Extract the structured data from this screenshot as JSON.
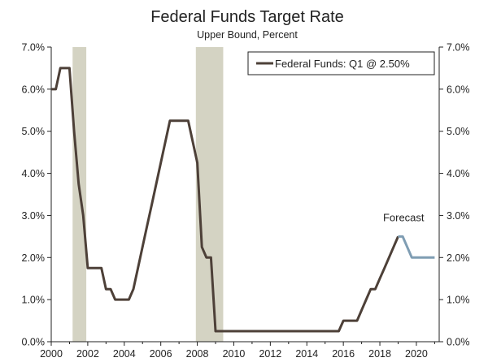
{
  "chart_data": {
    "type": "line",
    "title": "Federal Funds Target Rate",
    "subtitle": "Upper Bound, Percent",
    "xlim": [
      2000,
      2021.25
    ],
    "ylim": [
      0,
      7
    ],
    "x_ticks": [
      {
        "value": 2000,
        "label": "2000"
      },
      {
        "value": 2002,
        "label": "2002"
      },
      {
        "value": 2004,
        "label": "2004"
      },
      {
        "value": 2006,
        "label": "2006"
      },
      {
        "value": 2008,
        "label": "2008"
      },
      {
        "value": 2010,
        "label": "2010"
      },
      {
        "value": 2012,
        "label": "2012"
      },
      {
        "value": 2014,
        "label": "2014"
      },
      {
        "value": 2016,
        "label": "2016"
      },
      {
        "value": 2018,
        "label": "2018"
      },
      {
        "value": 2020,
        "label": "2020"
      }
    ],
    "y_ticks": [
      {
        "value": 0,
        "label": "0.0%"
      },
      {
        "value": 1,
        "label": "1.0%"
      },
      {
        "value": 2,
        "label": "2.0%"
      },
      {
        "value": 3,
        "label": "3.0%"
      },
      {
        "value": 4,
        "label": "4.0%"
      },
      {
        "value": 5,
        "label": "5.0%"
      },
      {
        "value": 6,
        "label": "6.0%"
      },
      {
        "value": 7,
        "label": "7.0%"
      }
    ],
    "recessions": [
      {
        "start": 2001.17,
        "end": 2001.92
      },
      {
        "start": 2007.92,
        "end": 2009.42
      }
    ],
    "legend": {
      "position": "top-right",
      "entries": [
        {
          "label": "Federal Funds: Q1 @ 2.50%",
          "color": "#4d4038"
        }
      ]
    },
    "series": [
      {
        "name": "Federal Funds: Q1 @ 2.50%",
        "color": "#4d4038",
        "x": [
          2000.0,
          2000.25,
          2000.5,
          2000.75,
          2001.0,
          2001.25,
          2001.5,
          2001.75,
          2002.0,
          2002.25,
          2002.5,
          2002.75,
          2003.0,
          2003.25,
          2003.5,
          2003.75,
          2004.0,
          2004.25,
          2004.5,
          2004.75,
          2005.0,
          2005.25,
          2005.5,
          2005.75,
          2006.0,
          2006.25,
          2006.5,
          2006.75,
          2007.0,
          2007.25,
          2007.5,
          2007.75,
          2008.0,
          2008.25,
          2008.5,
          2008.75,
          2009.0,
          2010.0,
          2011.0,
          2012.0,
          2013.0,
          2014.0,
          2015.0,
          2015.75,
          2016.0,
          2016.25,
          2016.5,
          2016.75,
          2017.0,
          2017.25,
          2017.5,
          2017.75,
          2018.0,
          2018.25,
          2018.5,
          2018.75,
          2019.0
        ],
        "values": [
          6.0,
          6.0,
          6.5,
          6.5,
          6.5,
          5.0,
          3.75,
          3.0,
          1.75,
          1.75,
          1.75,
          1.75,
          1.25,
          1.25,
          1.0,
          1.0,
          1.0,
          1.0,
          1.25,
          1.75,
          2.25,
          2.75,
          3.25,
          3.75,
          4.25,
          4.75,
          5.25,
          5.25,
          5.25,
          5.25,
          5.25,
          4.75,
          4.25,
          2.25,
          2.0,
          2.0,
          0.25,
          0.25,
          0.25,
          0.25,
          0.25,
          0.25,
          0.25,
          0.25,
          0.5,
          0.5,
          0.5,
          0.5,
          0.75,
          1.0,
          1.25,
          1.25,
          1.5,
          1.75,
          2.0,
          2.25,
          2.5
        ]
      },
      {
        "name": "",
        "color": "#7f9db3",
        "x": [
          2019.0,
          2019.25,
          2019.5,
          2019.75,
          2020.0,
          2020.25,
          2020.5,
          2020.75,
          2021.0
        ],
        "values": [
          2.5,
          2.5,
          2.25,
          2.0,
          2.0,
          2.0,
          2.0,
          2.0,
          2.0
        ]
      }
    ],
    "annotations": [
      {
        "text": "Forecast",
        "x": 2019.3,
        "y": 2.86
      }
    ]
  }
}
